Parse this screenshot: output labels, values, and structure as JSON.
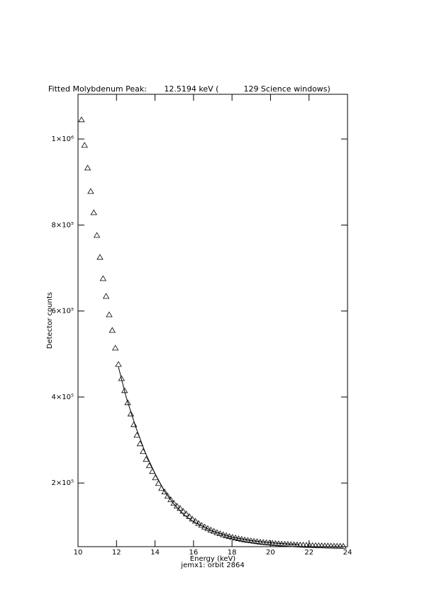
{
  "chart_data": {
    "type": "scatter",
    "title": "Fitted Molybdenum Peak:       12.5194 keV (          129 Science windows)",
    "x_label": "Energy (keV)",
    "subtitle": "jemx1: orbit 2864",
    "y_label": "Detector counts",
    "xlim": [
      10,
      24
    ],
    "xticks": [
      10,
      12,
      14,
      16,
      18,
      20,
      22,
      24
    ],
    "ylim": [
      52000,
      1104000
    ],
    "yticks": [
      {
        "value": 200000,
        "label": "2×10⁵"
      },
      {
        "value": 400000,
        "label": "4×10⁵"
      },
      {
        "value": 600000,
        "label": "6×10⁵"
      },
      {
        "value": 800000,
        "label": "8×10⁵"
      },
      {
        "value": 1000000,
        "label": "1×10⁶"
      }
    ],
    "series": [
      {
        "type": "scatter",
        "marker": "triangle",
        "color": "#000000",
        "x": [
          10.18,
          10.34,
          10.5,
          10.66,
          10.82,
          10.98,
          11.14,
          11.3,
          11.46,
          11.62,
          11.78,
          11.94,
          12.1,
          12.26,
          12.42,
          12.58,
          12.74,
          12.9,
          13.06,
          13.22,
          13.38,
          13.54,
          13.7,
          13.86,
          14.02,
          14.18,
          14.34,
          14.5,
          14.66,
          14.82,
          14.98,
          15.14,
          15.3,
          15.46,
          15.62,
          15.78,
          15.94,
          16.1,
          16.26,
          16.42,
          16.58,
          16.74,
          16.9,
          17.06,
          17.22,
          17.38,
          17.54,
          17.7,
          17.86,
          18.02,
          18.18,
          18.34,
          18.5,
          18.66,
          18.82,
          18.98,
          19.14,
          19.3,
          19.46,
          19.62,
          19.78,
          19.94,
          20.1,
          20.26,
          20.42,
          20.58,
          20.74,
          20.9,
          21.06,
          21.22,
          21.38,
          21.54,
          21.7,
          21.86,
          22.02,
          22.18,
          22.34,
          22.5,
          22.66,
          22.82,
          22.98,
          23.14,
          23.3,
          23.46,
          23.62,
          23.78
        ],
        "values": [
          1044600,
          985200,
          932400,
          878000,
          828500,
          775800,
          724700,
          675200,
          634000,
          591100,
          554800,
          513600,
          475700,
          442700,
          414700,
          386700,
          360300,
          335600,
          310900,
          291100,
          273000,
          254800,
          240000,
          226800,
          212000,
          198800,
          187300,
          179000,
          169100,
          160900,
          152700,
          146100,
          141000,
          134400,
          128000,
          122000,
          116000,
          111000,
          106000,
          101500,
          97500,
          94000,
          90500,
          87500,
          84500,
          82000,
          79500,
          77500,
          75500,
          73500,
          72000,
          70500,
          69000,
          67500,
          66500,
          65500,
          64500,
          63500,
          62500,
          61800,
          61000,
          60300,
          59700,
          59100,
          58600,
          58100,
          57600,
          57200,
          56800,
          56400,
          56000,
          55700,
          55400,
          55100,
          54800,
          54500,
          54300,
          54100,
          53900,
          53700,
          53500,
          53300,
          53200,
          53000,
          52900,
          52800
        ]
      },
      {
        "type": "line",
        "color": "#000000",
        "x": [
          12.1,
          12.5,
          13,
          13.5,
          14,
          14.5,
          15,
          15.5,
          16,
          17,
          18,
          19,
          20,
          21,
          21.5
        ],
        "values": [
          470000,
          400000,
          330000,
          270000,
          222000,
          180000,
          150000,
          126000,
          110000,
          88000,
          74000,
          66000,
          61000,
          58000,
          57000
        ]
      }
    ]
  }
}
